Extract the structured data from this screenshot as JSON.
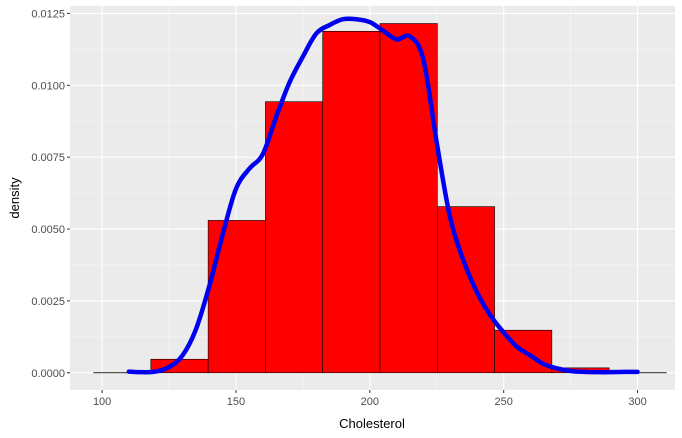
{
  "chart_data": {
    "type": "bar",
    "title": "",
    "xlabel": "Cholesterol",
    "ylabel": "density",
    "xlim": [
      88,
      314
    ],
    "ylim": [
      -0.0006,
      0.01276
    ],
    "x_ticks": [
      100,
      150,
      200,
      250,
      300
    ],
    "x_tick_labels": [
      "100",
      "150",
      "200",
      "250",
      "300"
    ],
    "y_ticks": [
      0,
      0.0025,
      0.005,
      0.0075,
      0.01,
      0.0125
    ],
    "y_tick_labels": [
      "0.0000",
      "0.0025",
      "0.0050",
      "0.0075",
      "0.0100",
      "0.0125"
    ],
    "grid": true,
    "histogram": {
      "bins": [
        {
          "x0": 96.8,
          "x1": 118.2,
          "density": 0.0
        },
        {
          "x0": 118.2,
          "x1": 139.6,
          "density": 0.00047
        },
        {
          "x0": 139.6,
          "x1": 161.0,
          "density": 0.0053
        },
        {
          "x0": 161.0,
          "x1": 182.4,
          "density": 0.00943
        },
        {
          "x0": 182.4,
          "x1": 203.8,
          "density": 0.01188
        },
        {
          "x0": 203.8,
          "x1": 225.2,
          "density": 0.01215
        },
        {
          "x0": 225.2,
          "x1": 246.6,
          "density": 0.00578
        },
        {
          "x0": 246.6,
          "x1": 268.0,
          "density": 0.00148
        },
        {
          "x0": 268.0,
          "x1": 289.4,
          "density": 0.00017
        },
        {
          "x0": 289.4,
          "x1": 310.8,
          "density": 0.0
        }
      ],
      "fill": "#ff0000",
      "stroke": "#000000"
    },
    "density_curve": {
      "color": "#0000ee",
      "x": [
        110,
        115,
        120,
        125,
        130,
        135,
        140,
        145,
        150,
        155,
        160,
        165,
        170,
        175,
        180,
        185,
        190,
        195,
        200,
        205,
        210,
        215,
        220,
        225,
        230,
        235,
        240,
        245,
        250,
        255,
        260,
        265,
        270,
        275,
        280,
        285,
        290,
        295,
        300
      ],
      "y": [
        4e-05,
        2e-05,
        4e-05,
        0.0002,
        0.0006,
        0.0015,
        0.003,
        0.0048,
        0.0064,
        0.0071,
        0.0076,
        0.0089,
        0.0101,
        0.011,
        0.0118,
        0.0121,
        0.0123,
        0.0123,
        0.0122,
        0.0119,
        0.0116,
        0.0117,
        0.0109,
        0.008,
        0.0054,
        0.0039,
        0.0028,
        0.002,
        0.0014,
        0.0009,
        0.0006,
        0.0003,
        0.00015,
        6e-05,
        3e-05,
        2e-05,
        2e-05,
        3e-05,
        3e-05
      ]
    }
  }
}
